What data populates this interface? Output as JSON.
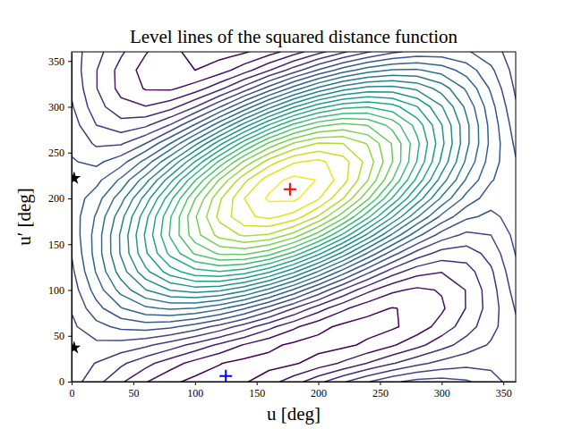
{
  "chart_data": {
    "type": "contour",
    "title": "Level lines of the squared distance function",
    "xlabel": "u [deg]",
    "ylabel": "u′ [deg]",
    "xlim": [
      0,
      360
    ],
    "ylim": [
      0,
      360
    ],
    "xticks": [
      0,
      50,
      100,
      150,
      200,
      250,
      300,
      350
    ],
    "yticks": [
      0,
      50,
      100,
      150,
      200,
      250,
      300,
      350
    ],
    "x": [
      0,
      20,
      40,
      60,
      80,
      100,
      120,
      140,
      160,
      180,
      200,
      220,
      240,
      260,
      280,
      300,
      320,
      340,
      360
    ],
    "y": [
      0,
      20,
      40,
      60,
      80,
      100,
      120,
      140,
      160,
      180,
      200,
      220,
      240,
      260,
      280,
      300,
      320,
      340,
      360
    ],
    "z": [
      [
        1.37,
        1.09,
        0.79,
        0.52,
        0.31,
        0.18,
        0.15,
        0.22,
        0.39,
        0.63,
        0.92,
        1.21,
        1.48,
        1.7,
        1.83,
        1.85,
        1.78,
        1.61,
        1.37
      ],
      [
        1.37,
        1.24,
        1.05,
        0.83,
        0.61,
        0.41,
        0.26,
        0.17,
        0.16,
        0.22,
        0.36,
        0.54,
        0.76,
        0.98,
        1.18,
        1.33,
        1.42,
        1.43,
        1.37
      ],
      [
        1.4,
        1.44,
        1.4,
        1.3,
        1.13,
        0.92,
        0.7,
        0.48,
        0.31,
        0.2,
        0.15,
        0.19,
        0.3,
        0.47,
        0.67,
        0.9,
        1.11,
        1.28,
        1.4
      ],
      [
        1.45,
        1.67,
        1.81,
        1.86,
        1.8,
        1.64,
        1.41,
        1.13,
        0.83,
        0.55,
        0.33,
        0.19,
        0.15,
        0.21,
        0.36,
        0.6,
        0.88,
        1.17,
        1.45
      ],
      [
        1.52,
        1.91,
        2.23,
        2.45,
        2.54,
        2.49,
        2.31,
        2.02,
        1.65,
        1.25,
        0.87,
        0.55,
        0.33,
        0.24,
        0.29,
        0.46,
        0.76,
        1.12,
        1.52
      ],
      [
        1.61,
        2.11,
        2.59,
        2.99,
        3.26,
        3.37,
        3.3,
        3.06,
        2.68,
        2.21,
        1.7,
        1.22,
        0.82,
        0.55,
        0.45,
        0.52,
        0.76,
        1.14,
        1.61
      ],
      [
        1.69,
        2.27,
        2.87,
        3.43,
        3.88,
        4.16,
        4.24,
        4.11,
        3.79,
        3.31,
        2.73,
        2.13,
        1.57,
        1.12,
        0.84,
        0.76,
        0.89,
        1.21,
        1.69
      ],
      [
        1.76,
        2.35,
        3.03,
        3.71,
        4.32,
        4.78,
        5.04,
        5.06,
        4.85,
        4.42,
        3.83,
        3.16,
        2.47,
        1.86,
        1.4,
        1.15,
        1.12,
        1.34,
        1.76
      ],
      [
        1.82,
        2.35,
        3.04,
        3.79,
        4.53,
        5.15,
        5.59,
        5.79,
        5.72,
        5.4,
        4.87,
        4.19,
        3.43,
        2.7,
        2.08,
        1.64,
        1.44,
        1.5,
        1.82
      ],
      [
        1.85,
        2.28,
        2.91,
        3.67,
        4.48,
        5.22,
        5.82,
        6.2,
        6.31,
        6.15,
        5.72,
        5.09,
        4.32,
        3.52,
        2.78,
        2.18,
        1.8,
        1.69,
        1.85
      ],
      [
        1.85,
        2.13,
        2.65,
        3.36,
        4.17,
        4.99,
        5.71,
        6.25,
        6.54,
        6.56,
        6.28,
        5.76,
        5.05,
        4.23,
        3.42,
        2.7,
        2.16,
        1.86,
        1.85
      ],
      [
        1.83,
        1.92,
        2.3,
        2.9,
        3.66,
        4.48,
        5.28,
        5.94,
        6.39,
        6.58,
        6.49,
        6.11,
        5.51,
        4.75,
        3.93,
        3.13,
        2.47,
        2.02,
        1.83
      ],
      [
        1.77,
        1.69,
        1.89,
        2.34,
        2.99,
        3.76,
        4.56,
        5.3,
        5.87,
        6.22,
        6.31,
        6.11,
        5.66,
        5.01,
        4.24,
        3.44,
        2.7,
        2.12,
        1.77
      ],
      [
        1.7,
        1.46,
        1.47,
        1.75,
        2.25,
        2.91,
        3.66,
        4.4,
        5.05,
        5.52,
        5.77,
        5.75,
        5.48,
        4.98,
        4.32,
        3.57,
        2.82,
        2.18,
        1.7
      ],
      [
        1.62,
        1.25,
        1.1,
        1.2,
        1.52,
        2.03,
        2.67,
        3.36,
        4.02,
        4.57,
        4.93,
        5.08,
        4.99,
        4.66,
        4.15,
        3.51,
        2.82,
        2.16,
        1.62
      ],
      [
        1.53,
        1.1,
        0.83,
        0.76,
        0.9,
        1.24,
        1.73,
        2.31,
        2.91,
        3.47,
        3.91,
        4.17,
        4.24,
        4.1,
        3.76,
        3.27,
        2.69,
        2.09,
        1.53
      ],
      [
        1.46,
        1.01,
        0.67,
        0.48,
        0.46,
        0.62,
        0.93,
        1.36,
        1.86,
        2.36,
        2.81,
        3.15,
        3.34,
        3.35,
        3.2,
        2.89,
        2.46,
        1.96,
        1.46
      ],
      [
        1.4,
        1.01,
        0.66,
        0.4,
        0.26,
        0.25,
        0.38,
        0.64,
        0.98,
        1.37,
        1.77,
        2.12,
        2.38,
        2.52,
        2.53,
        2.39,
        2.14,
        1.8,
        1.4
      ],
      [
        1.37,
        1.09,
        0.79,
        0.52,
        0.31,
        0.18,
        0.15,
        0.22,
        0.39,
        0.63,
        0.92,
        1.21,
        1.48,
        1.7,
        1.83,
        1.85,
        1.78,
        1.61,
        1.37
      ]
    ],
    "levels": [
      0.25,
      0.5,
      0.75,
      1.0,
      1.25,
      1.5,
      1.75,
      2.0,
      2.25,
      2.5,
      2.75,
      3.0,
      3.25,
      3.5,
      3.75,
      4.0,
      4.25,
      4.5,
      4.75,
      5.0,
      5.25,
      5.5,
      5.75,
      6.0,
      6.25,
      6.5
    ],
    "series": [
      {
        "type": "scatter",
        "marker": "plus",
        "color": "red",
        "x": [
          177
        ],
        "y": [
          210
        ]
      },
      {
        "type": "scatter",
        "marker": "plus",
        "color": "blue",
        "x": [
          125
        ],
        "y": [
          6
        ]
      },
      {
        "type": "scatter",
        "marker": "star",
        "color": "black",
        "x": [
          2,
          2
        ],
        "y": [
          222,
          37
        ]
      }
    ]
  }
}
